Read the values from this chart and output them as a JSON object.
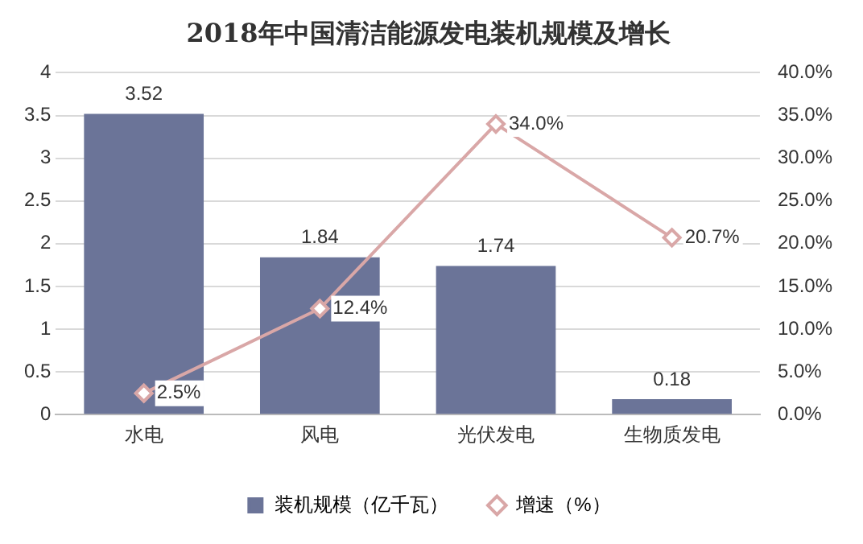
{
  "chart_data": {
    "type": "bar",
    "title": "2018年中国清洁能源发电装机规模及增长",
    "categories": [
      "水电",
      "风电",
      "光伏发电",
      "生物质发电"
    ],
    "series": [
      {
        "name": "装机规模（亿千瓦）",
        "color": "#6b7498",
        "values": [
          3.52,
          1.84,
          1.74,
          0.18
        ],
        "value_labels": [
          "3.52",
          "1.84",
          "1.74",
          "0.18"
        ]
      },
      {
        "name": "增速（%）",
        "type": "line",
        "axis": "y2",
        "color": "#d9a7a7",
        "values": [
          2.5,
          12.4,
          34.0,
          20.7
        ],
        "value_labels": [
          "2.5%",
          "12.4%",
          "34.0%",
          "20.7%"
        ]
      }
    ],
    "ylim": [
      0,
      4
    ],
    "yticks": [
      0,
      0.5,
      1,
      1.5,
      2,
      2.5,
      3,
      3.5,
      4
    ],
    "y2lim": [
      0,
      40
    ],
    "y2ticks": [
      {
        "value": 0,
        "label": "0.0%"
      },
      {
        "value": 5,
        "label": "5.0%"
      },
      {
        "value": 10,
        "label": "10.0%"
      },
      {
        "value": 15,
        "label": "15.0%"
      },
      {
        "value": 20,
        "label": "20.0%"
      },
      {
        "value": 25,
        "label": "25.0%"
      },
      {
        "value": 30,
        "label": "30.0%"
      },
      {
        "value": 35,
        "label": "35.0%"
      },
      {
        "value": 40,
        "label": "40.0%"
      }
    ],
    "grid": "y",
    "legend": "bottom",
    "marker": "diamond",
    "line_style": "solid"
  }
}
